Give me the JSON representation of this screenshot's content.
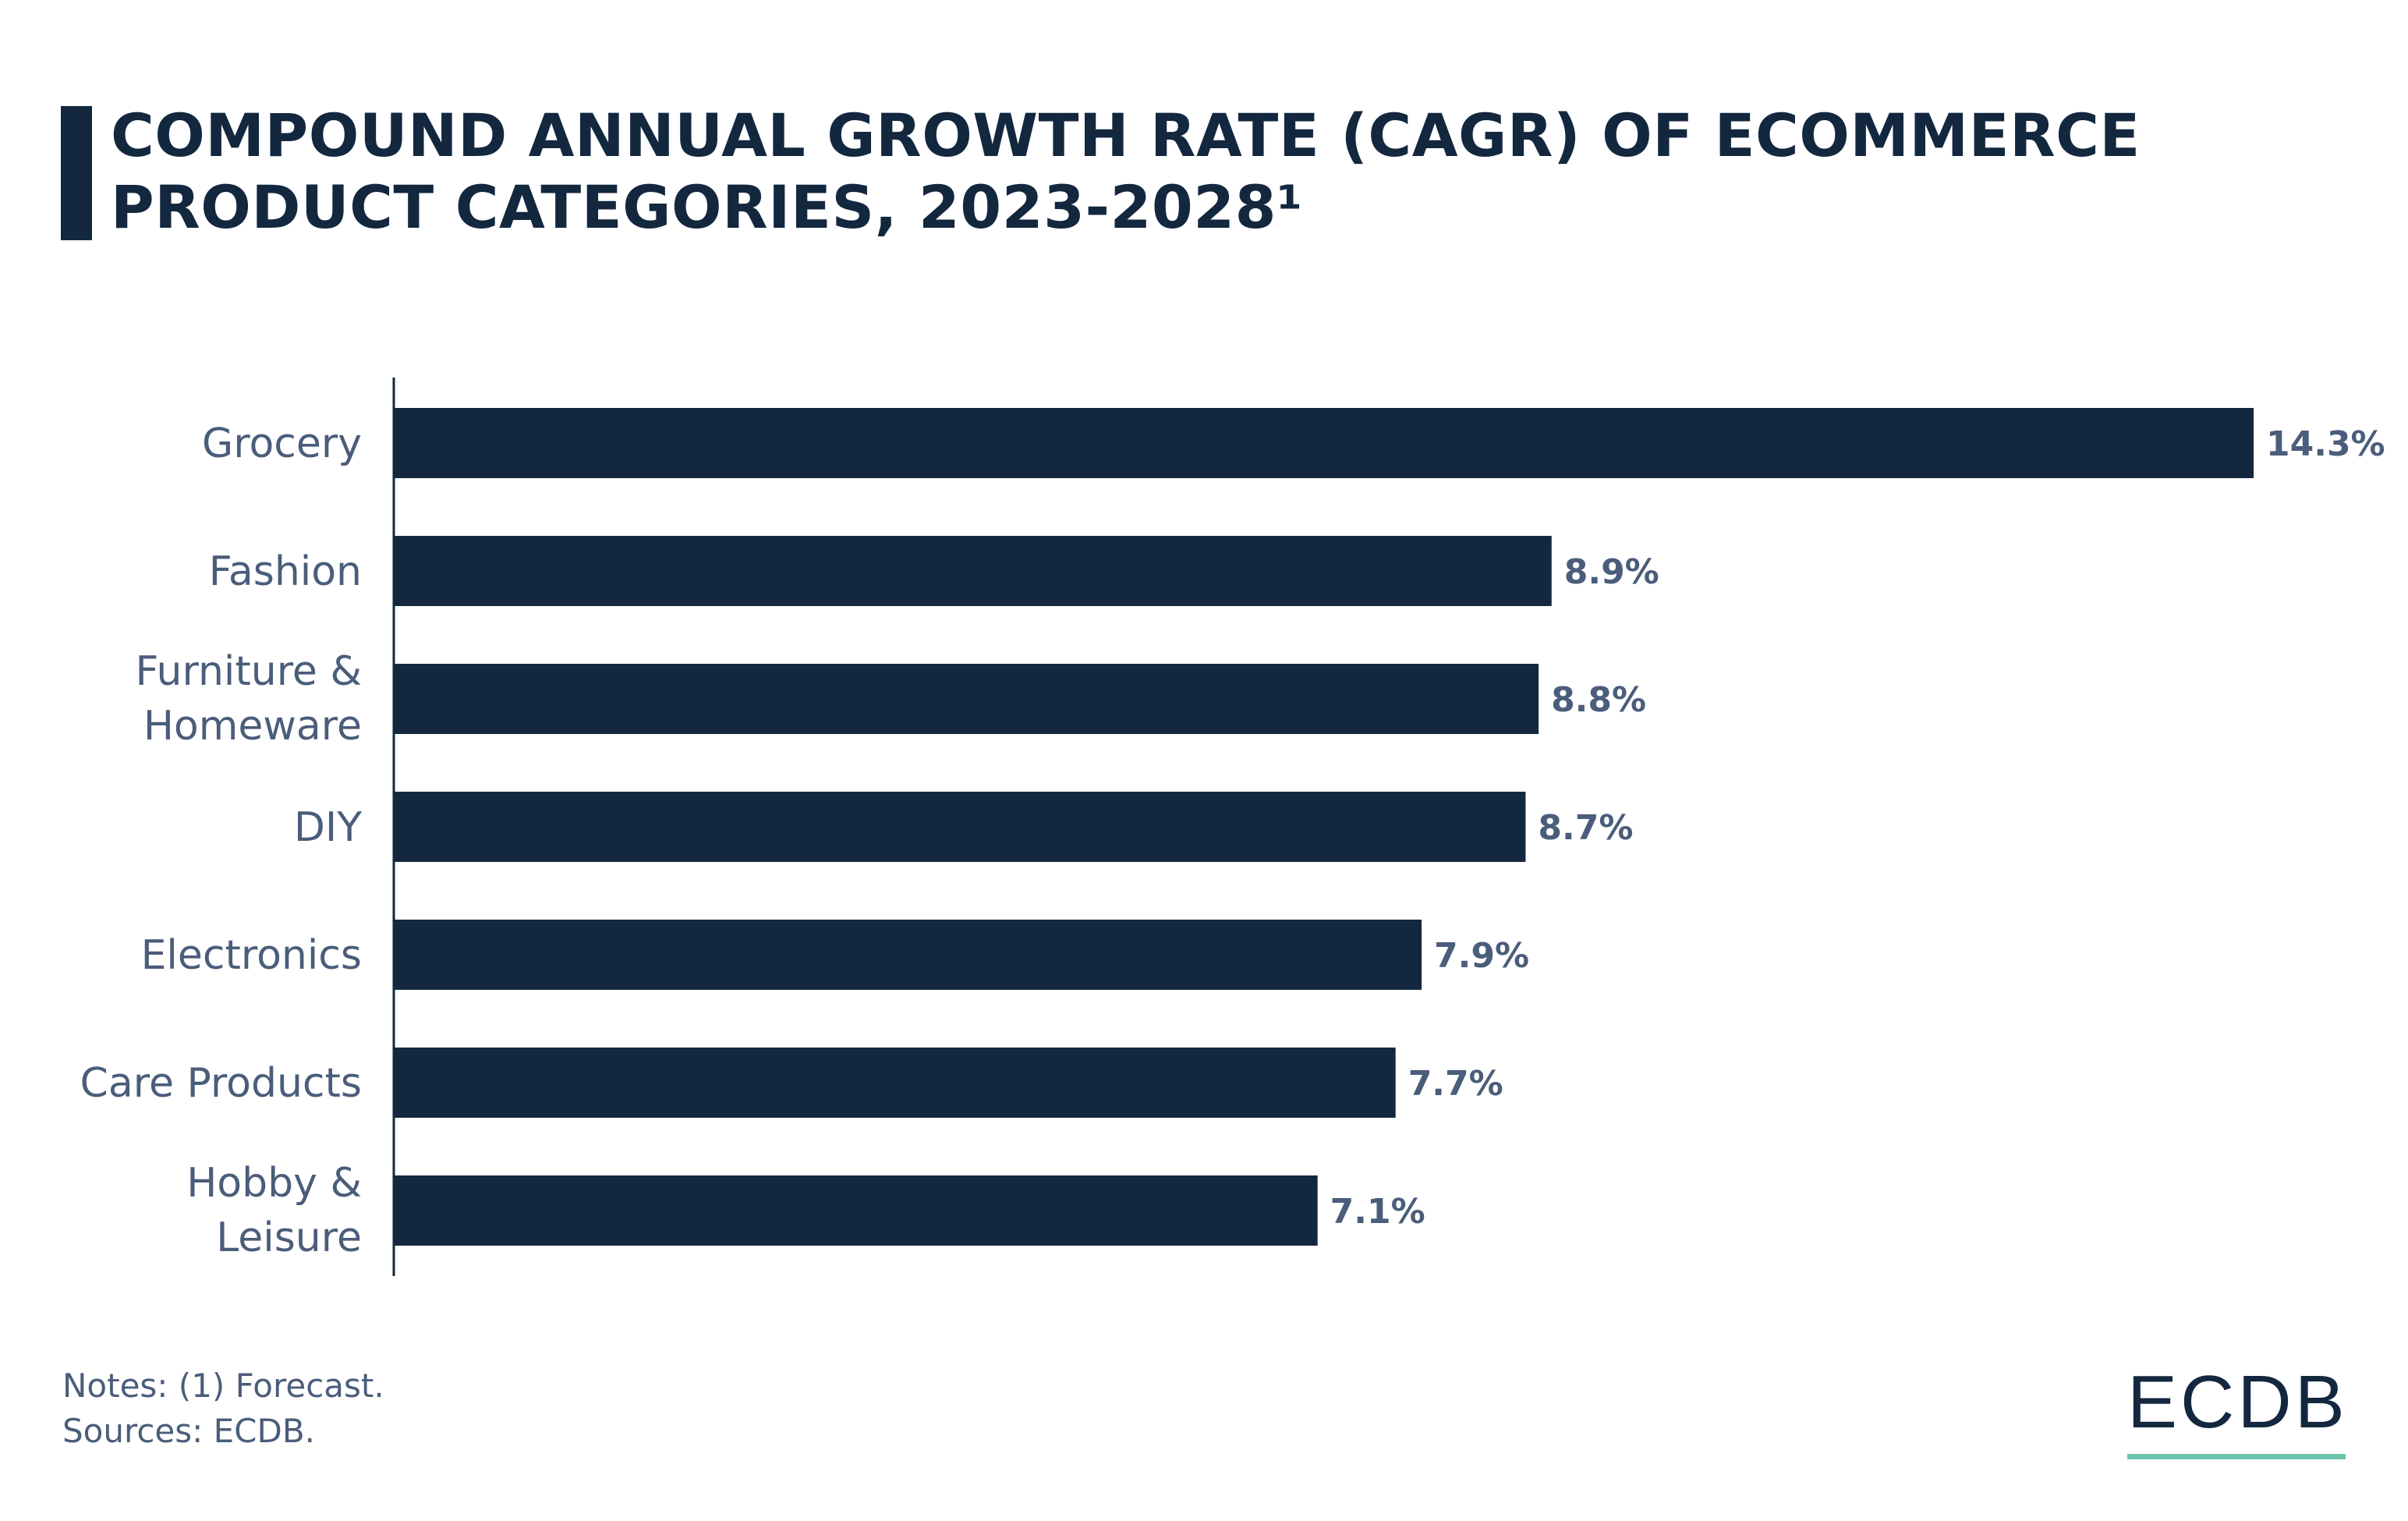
{
  "title": "COMPOUND ANNUAL GROWTH RATE (CAGR) OF ECOMMERCE PRODUCT CATEGORIES, 2023-2028¹",
  "colors": {
    "bar": "#13273f",
    "label": "#4a5d7a",
    "accent": "#6cc3ad"
  },
  "chart_data": {
    "type": "bar",
    "orientation": "horizontal",
    "title": "COMPOUND ANNUAL GROWTH RATE (CAGR) OF ECOMMERCE PRODUCT CATEGORIES, 2023-2028¹",
    "categories": [
      "Grocery",
      "Fashion",
      "Furniture & Homeware",
      "DIY",
      "Electronics",
      "Care Products",
      "Hobby & Leisure"
    ],
    "values": [
      14.3,
      8.9,
      8.8,
      8.7,
      7.9,
      7.7,
      7.1
    ],
    "value_labels": [
      "14.3%",
      "8.9%",
      "8.8%",
      "8.7%",
      "7.9%",
      "7.7%",
      "7.1%"
    ],
    "unit": "%",
    "xlim": [
      0,
      14.3
    ],
    "grid": false,
    "legend": "none"
  },
  "notes": [
    "Notes: (1) Forecast.",
    "Sources: ECDB."
  ],
  "logo": "ECDB"
}
